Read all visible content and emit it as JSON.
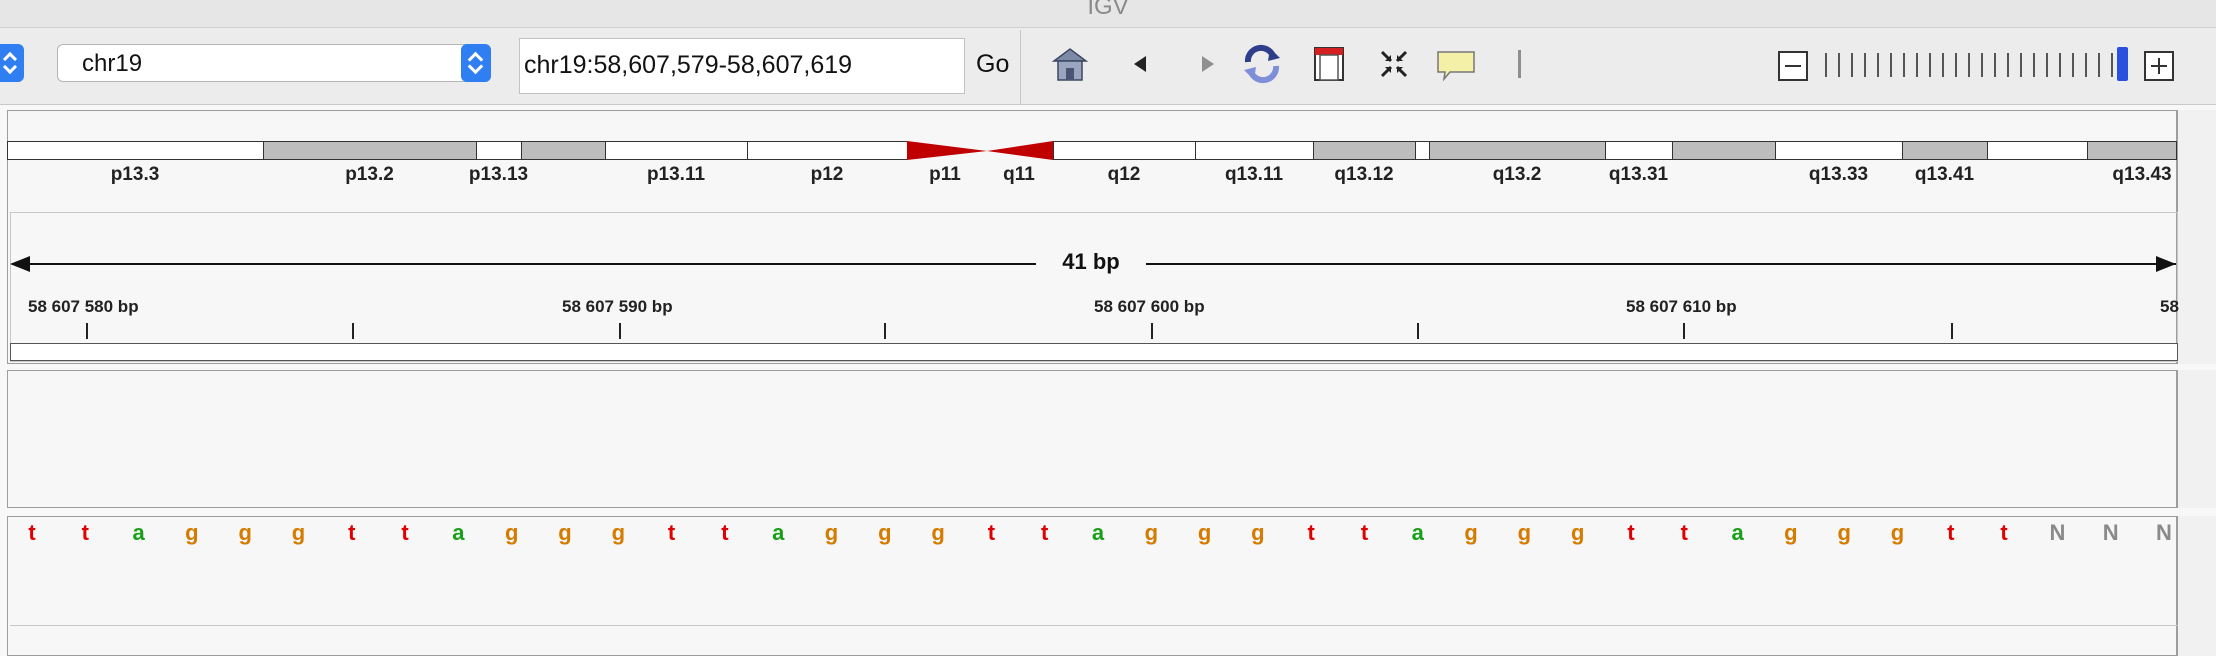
{
  "window": {
    "title": "IGV"
  },
  "toolbar": {
    "chromosome": "chr19",
    "locus": "chr19:58,607,579-58,607,619",
    "go_label": "Go"
  },
  "colors": {
    "stepper_blue": "#2f7ef2",
    "centromere_red": "#c00000",
    "base_t": "#e00000",
    "base_a": "#18a018",
    "base_g": "#d57b00",
    "base_n": "#8a8a8a",
    "zoom_thumb": "#2a50e0"
  },
  "ideogram": {
    "bands": [
      {
        "name": "p13.3",
        "stain": "gneg"
      },
      {
        "name": "p13.2",
        "stain": "gpos"
      },
      {
        "name": "p13.13",
        "stain": "gneg"
      },
      {
        "name": "",
        "stain": "gpos"
      },
      {
        "name": "p13.11",
        "stain": "gneg"
      },
      {
        "name": "p12",
        "stain": "gneg"
      },
      {
        "name": "p11",
        "stain": "acen"
      },
      {
        "name": "q11",
        "stain": "acen"
      },
      {
        "name": "q12",
        "stain": "gneg"
      },
      {
        "name": "q13.11",
        "stain": "gneg"
      },
      {
        "name": "q13.12",
        "stain": "gpos"
      },
      {
        "name": "",
        "stain": "gneg"
      },
      {
        "name": "q13.2",
        "stain": "gpos"
      },
      {
        "name": "q13.31",
        "stain": "gneg"
      },
      {
        "name": "",
        "stain": "gpos"
      },
      {
        "name": "q13.33",
        "stain": "gneg"
      },
      {
        "name": "q13.41",
        "stain": "gpos"
      },
      {
        "name": "",
        "stain": "gneg"
      },
      {
        "name": "q13.43",
        "stain": "gpos"
      }
    ]
  },
  "ruler": {
    "span_label": "41 bp",
    "tick_labels": [
      "58 607 580 bp",
      "58 607 590 bp",
      "58 607 600 bp",
      "58 607 610 bp",
      "58"
    ]
  },
  "sequence": {
    "bases": [
      "t",
      "t",
      "a",
      "g",
      "g",
      "g",
      "t",
      "t",
      "a",
      "g",
      "g",
      "g",
      "t",
      "t",
      "a",
      "g",
      "g",
      "g",
      "t",
      "t",
      "a",
      "g",
      "g",
      "g",
      "t",
      "t",
      "a",
      "g",
      "g",
      "g",
      "t",
      "t",
      "a",
      "g",
      "g",
      "g",
      "t",
      "t",
      "N",
      "N",
      "N"
    ]
  }
}
